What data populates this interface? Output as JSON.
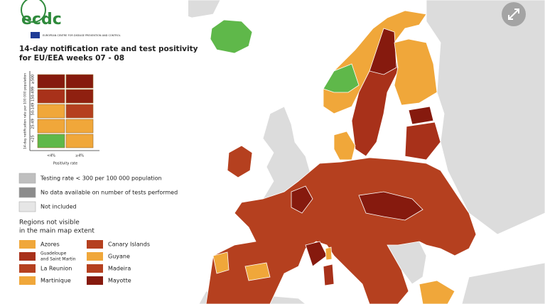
{
  "logo": {
    "name": "ecdc",
    "subtitle": "EUROPEAN CENTRE FOR DISEASE PREVENTION AND CONTROL"
  },
  "title_lines": [
    "14-day notification rate and test positivity",
    "for EU/EEA weeks 07 - 08"
  ],
  "matrix": {
    "y_label": "14-day notification rate per 100 000 population",
    "rows": [
      {
        "label": "≥500",
        "colors": [
          "#861a0e",
          "#861a0e"
        ]
      },
      {
        "label": "150-499",
        "colors": [
          "#a8311a",
          "#8f2010"
        ]
      },
      {
        "label": "50-149",
        "colors": [
          "#f0a73a",
          "#b5401f"
        ]
      },
      {
        "label": "25-49",
        "colors": [
          "#f0a73a",
          "#f0a73a"
        ]
      },
      {
        "label": "<25",
        "colors": [
          "#5fb84a",
          "#f0a73a"
        ]
      }
    ],
    "columns": [
      "<4%",
      "≥4%"
    ],
    "x_label": "Positivity rate"
  },
  "legend": [
    {
      "label": "Testing rate < 300 per 100 000 population",
      "color": "#bfbfbf"
    },
    {
      "label": "No data available on number of tests performed",
      "color": "#8c8c8c"
    },
    {
      "label": "Not included",
      "color": "#e6e6e6"
    }
  ],
  "regions": {
    "title_lines": [
      "Regions not visible",
      "in the main map extent"
    ],
    "items": [
      {
        "lines": [
          "Azores"
        ],
        "color": "#f0a73a"
      },
      {
        "lines": [
          "Guadeloupe",
          "and Saint Martin"
        ],
        "color": "#a8311a"
      },
      {
        "lines": [
          "La Reunion"
        ],
        "color": "#b5401f"
      },
      {
        "lines": [
          "Martinique"
        ],
        "color": "#f0a73a"
      },
      {
        "lines": [
          "Canary Islands"
        ],
        "color": "#b5401f"
      },
      {
        "lines": [
          "Guyane"
        ],
        "color": "#f0a73a"
      },
      {
        "lines": [
          "Madeira"
        ],
        "color": "#b5401f"
      },
      {
        "lines": [
          "Mayotte"
        ],
        "color": "#861a0e"
      }
    ]
  }
}
